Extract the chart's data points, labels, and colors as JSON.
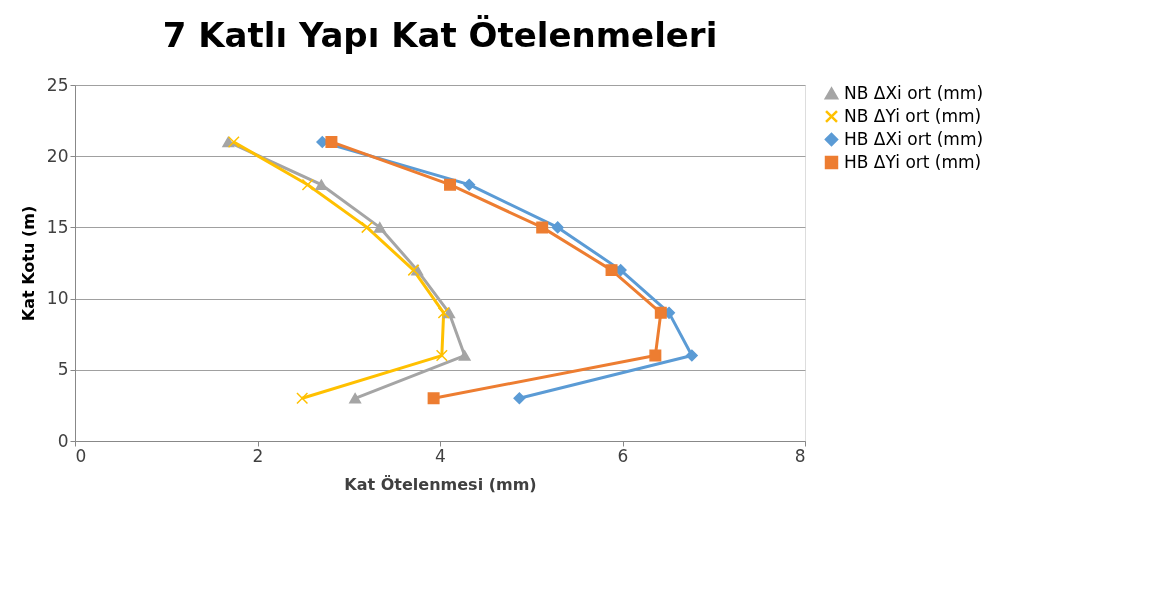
{
  "chart_data": {
    "type": "line",
    "title": "7 Katlı Yapı Kat Ötelenmeleri",
    "xlabel": "Kat Ötelenmesi (mm)",
    "ylabel": "Kat Kotu (m)",
    "xlim": [
      0,
      8
    ],
    "xticks": [
      0,
      2,
      4,
      6,
      8
    ],
    "ylim": [
      0,
      25
    ],
    "yticks": [
      0,
      5,
      10,
      15,
      20,
      25
    ],
    "grid": "y",
    "legend": "right",
    "series": [
      {
        "name": "NB ΔXi ort (mm)",
        "color": "#a5a5a5",
        "marker": "triangle",
        "x": [
          3.07,
          4.27,
          4.1,
          3.75,
          3.34,
          2.7,
          1.68
        ],
        "values": [
          3,
          6,
          9,
          12,
          15,
          18,
          21
        ]
      },
      {
        "name": "NB ΔYi ort (mm)",
        "color": "#ffc000",
        "marker": "cross",
        "x": [
          2.49,
          4.02,
          4.04,
          3.71,
          3.2,
          2.55,
          1.74
        ],
        "values": [
          3,
          6,
          9,
          12,
          15,
          18,
          21
        ]
      },
      {
        "name": "HB ΔXi ort (mm)",
        "color": "#5b9bd5",
        "marker": "diamond",
        "x": [
          4.87,
          6.76,
          6.51,
          5.98,
          5.29,
          4.32,
          2.71
        ],
        "values": [
          3,
          6,
          9,
          12,
          15,
          18,
          21
        ]
      },
      {
        "name": "HB ΔYi ort (mm)",
        "color": "#ed7d31",
        "marker": "square",
        "x": [
          3.93,
          6.36,
          6.42,
          5.88,
          5.12,
          4.11,
          2.81
        ],
        "values": [
          3,
          6,
          9,
          12,
          15,
          18,
          21
        ]
      }
    ]
  }
}
